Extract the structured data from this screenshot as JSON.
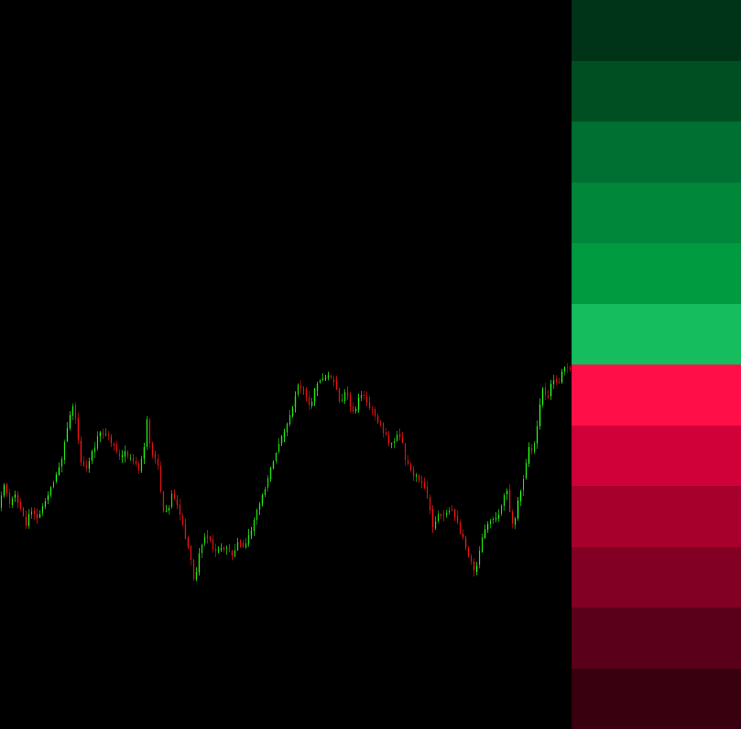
{
  "chart_data": {
    "type": "candlestick",
    "title": "",
    "xlabel": "",
    "ylabel": "",
    "grid": false,
    "legend": "none",
    "colors": {
      "background": "#000000",
      "bullish": "#22dd11",
      "bearish": "#dd1111"
    },
    "ylim": [
      0,
      1062
    ],
    "path_keypoints": [
      [
        0,
        738
      ],
      [
        8,
        705
      ],
      [
        16,
        730
      ],
      [
        24,
        722
      ],
      [
        32,
        740
      ],
      [
        40,
        765
      ],
      [
        48,
        742
      ],
      [
        56,
        752
      ],
      [
        66,
        735
      ],
      [
        74,
        715
      ],
      [
        84,
        688
      ],
      [
        92,
        665
      ],
      [
        100,
        625
      ],
      [
        108,
        594
      ],
      [
        114,
        620
      ],
      [
        120,
        672
      ],
      [
        128,
        685
      ],
      [
        136,
        660
      ],
      [
        144,
        636
      ],
      [
        152,
        633
      ],
      [
        160,
        638
      ],
      [
        168,
        652
      ],
      [
        178,
        672
      ],
      [
        186,
        658
      ],
      [
        194,
        668
      ],
      [
        204,
        686
      ],
      [
        212,
        650
      ],
      [
        216,
        612
      ],
      [
        222,
        655
      ],
      [
        232,
        680
      ],
      [
        240,
        740
      ],
      [
        246,
        752
      ],
      [
        254,
        712
      ],
      [
        262,
        745
      ],
      [
        270,
        768
      ],
      [
        278,
        808
      ],
      [
        286,
        848
      ],
      [
        294,
        800
      ],
      [
        302,
        778
      ],
      [
        310,
        790
      ],
      [
        318,
        808
      ],
      [
        326,
        795
      ],
      [
        334,
        802
      ],
      [
        342,
        812
      ],
      [
        350,
        785
      ],
      [
        358,
        800
      ],
      [
        366,
        780
      ],
      [
        374,
        748
      ],
      [
        382,
        730
      ],
      [
        390,
        702
      ],
      [
        398,
        680
      ],
      [
        406,
        650
      ],
      [
        414,
        628
      ],
      [
        422,
        615
      ],
      [
        430,
        585
      ],
      [
        438,
        555
      ],
      [
        446,
        578
      ],
      [
        452,
        592
      ],
      [
        460,
        572
      ],
      [
        468,
        556
      ],
      [
        476,
        548
      ],
      [
        482,
        545
      ],
      [
        490,
        560
      ],
      [
        498,
        585
      ],
      [
        506,
        572
      ],
      [
        514,
        598
      ],
      [
        522,
        590
      ],
      [
        530,
        570
      ],
      [
        538,
        585
      ],
      [
        546,
        600
      ],
      [
        554,
        615
      ],
      [
        562,
        630
      ],
      [
        570,
        655
      ],
      [
        578,
        640
      ],
      [
        586,
        632
      ],
      [
        594,
        672
      ],
      [
        602,
        690
      ],
      [
        610,
        695
      ],
      [
        618,
        705
      ],
      [
        626,
        728
      ],
      [
        632,
        765
      ],
      [
        640,
        750
      ],
      [
        648,
        755
      ],
      [
        656,
        738
      ],
      [
        664,
        748
      ],
      [
        672,
        775
      ],
      [
        680,
        796
      ],
      [
        688,
        815
      ],
      [
        694,
        832
      ],
      [
        700,
        808
      ],
      [
        708,
        770
      ],
      [
        716,
        755
      ],
      [
        724,
        752
      ],
      [
        732,
        742
      ],
      [
        740,
        712
      ],
      [
        744,
        745
      ],
      [
        750,
        770
      ],
      [
        758,
        722
      ],
      [
        766,
        690
      ],
      [
        772,
        650
      ],
      [
        778,
        660
      ],
      [
        786,
        612
      ],
      [
        792,
        562
      ],
      [
        800,
        582
      ],
      [
        806,
        552
      ],
      [
        812,
        562
      ],
      [
        820,
        545
      ],
      [
        826,
        530
      ],
      [
        832,
        532
      ]
    ],
    "candle_count": 208,
    "random_seed": 20240611
  },
  "zones": [
    {
      "color": "#003419"
    },
    {
      "color": "#004f22"
    },
    {
      "color": "#006f32"
    },
    {
      "color": "#00873a"
    },
    {
      "color": "#009a40"
    },
    {
      "color": "#15bd5e"
    },
    {
      "color": "#ff0e48"
    },
    {
      "color": "#d00038"
    },
    {
      "color": "#a8002d"
    },
    {
      "color": "#820024"
    },
    {
      "color": "#5b001a"
    },
    {
      "color": "#390010"
    }
  ]
}
